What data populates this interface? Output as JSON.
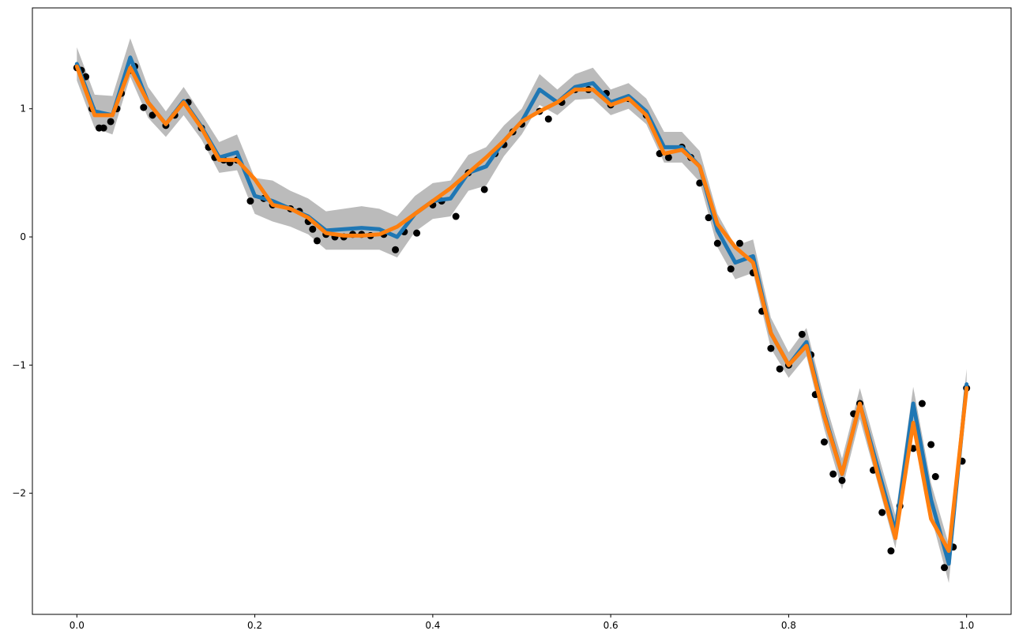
{
  "chart_data": {
    "type": "line",
    "x": [
      0.0,
      0.02,
      0.04,
      0.06,
      0.08,
      0.1,
      0.12,
      0.14,
      0.16,
      0.18,
      0.2,
      0.22,
      0.24,
      0.26,
      0.28,
      0.3,
      0.32,
      0.34,
      0.36,
      0.38,
      0.4,
      0.42,
      0.44,
      0.46,
      0.48,
      0.5,
      0.52,
      0.54,
      0.56,
      0.58,
      0.6,
      0.62,
      0.64,
      0.66,
      0.68,
      0.7,
      0.72,
      0.74,
      0.76,
      0.78,
      0.8,
      0.82,
      0.84,
      0.86,
      0.88,
      0.9,
      0.92,
      0.94,
      0.96,
      0.98,
      1.0
    ],
    "series": [
      {
        "color": "#1f77b4",
        "values": [
          1.35,
          0.98,
          0.95,
          1.4,
          1.05,
          0.88,
          1.06,
          0.86,
          0.62,
          0.66,
          0.32,
          0.28,
          0.22,
          0.16,
          0.05,
          0.06,
          0.07,
          0.06,
          0.0,
          0.18,
          0.28,
          0.3,
          0.5,
          0.55,
          0.75,
          0.9,
          1.15,
          1.05,
          1.17,
          1.2,
          1.05,
          1.1,
          0.98,
          0.7,
          0.7,
          0.55,
          0.05,
          -0.2,
          -0.15,
          -0.75,
          -1.0,
          -0.82,
          -1.38,
          -1.85,
          -1.3,
          -1.8,
          -2.3,
          -1.3,
          -2.05,
          -2.55,
          -1.15
        ]
      },
      {
        "color": "#ff7f0e",
        "values": [
          1.33,
          0.95,
          0.95,
          1.32,
          1.05,
          0.88,
          1.05,
          0.85,
          0.6,
          0.6,
          0.45,
          0.25,
          0.22,
          0.15,
          0.03,
          0.01,
          0.01,
          0.02,
          0.08,
          0.18,
          0.28,
          0.38,
          0.5,
          0.62,
          0.75,
          0.9,
          0.98,
          1.05,
          1.15,
          1.15,
          1.03,
          1.08,
          0.95,
          0.65,
          0.68,
          0.55,
          0.1,
          -0.08,
          -0.2,
          -0.75,
          -1.0,
          -0.85,
          -1.4,
          -1.85,
          -1.3,
          -1.85,
          -2.35,
          -1.45,
          -2.2,
          -2.45,
          -1.18
        ]
      }
    ],
    "band": {
      "color": "#bbbbbb",
      "lower": [
        1.22,
        0.85,
        0.8,
        1.25,
        0.93,
        0.78,
        0.95,
        0.76,
        0.5,
        0.52,
        0.18,
        0.12,
        0.08,
        0.02,
        -0.1,
        -0.1,
        -0.1,
        -0.1,
        -0.16,
        0.04,
        0.14,
        0.16,
        0.36,
        0.4,
        0.63,
        0.8,
        1.03,
        0.95,
        1.07,
        1.08,
        0.95,
        1.0,
        0.88,
        0.58,
        0.58,
        0.43,
        -0.08,
        -0.33,
        -0.28,
        -0.87,
        -1.1,
        -0.93,
        -1.5,
        -1.97,
        -1.42,
        -1.92,
        -2.43,
        -1.43,
        -2.18,
        -2.7,
        -1.27
      ],
      "upper": [
        1.48,
        1.11,
        1.1,
        1.55,
        1.17,
        0.98,
        1.17,
        0.96,
        0.74,
        0.8,
        0.46,
        0.44,
        0.36,
        0.3,
        0.2,
        0.22,
        0.24,
        0.22,
        0.16,
        0.32,
        0.42,
        0.44,
        0.64,
        0.7,
        0.87,
        1.0,
        1.27,
        1.15,
        1.27,
        1.32,
        1.15,
        1.2,
        1.08,
        0.82,
        0.82,
        0.67,
        0.18,
        -0.07,
        -0.02,
        -0.63,
        -0.9,
        -0.71,
        -1.26,
        -1.73,
        -1.18,
        -1.68,
        -2.17,
        -1.17,
        -1.92,
        -2.4,
        -1.03
      ]
    },
    "points": {
      "color": "#000000",
      "x": [
        0.0,
        0.005,
        0.01,
        0.017,
        0.025,
        0.03,
        0.038,
        0.045,
        0.05,
        0.06,
        0.065,
        0.075,
        0.085,
        0.1,
        0.11,
        0.125,
        0.14,
        0.148,
        0.155,
        0.165,
        0.172,
        0.18,
        0.195,
        0.21,
        0.22,
        0.24,
        0.25,
        0.26,
        0.265,
        0.27,
        0.28,
        0.29,
        0.3,
        0.31,
        0.32,
        0.33,
        0.345,
        0.358,
        0.368,
        0.382,
        0.4,
        0.41,
        0.426,
        0.44,
        0.458,
        0.47,
        0.48,
        0.49,
        0.5,
        0.52,
        0.53,
        0.545,
        0.56,
        0.575,
        0.595,
        0.6,
        0.62,
        0.64,
        0.655,
        0.665,
        0.68,
        0.69,
        0.7,
        0.71,
        0.72,
        0.735,
        0.745,
        0.76,
        0.77,
        0.78,
        0.79,
        0.8,
        0.815,
        0.825,
        0.83,
        0.84,
        0.85,
        0.86,
        0.873,
        0.88,
        0.895,
        0.905,
        0.915,
        0.925,
        0.94,
        0.95,
        0.96,
        0.965,
        0.975,
        0.985,
        0.995,
        1.0
      ],
      "y": [
        1.32,
        1.3,
        1.25,
        1.0,
        0.85,
        0.85,
        0.9,
        1.0,
        1.12,
        1.3,
        1.33,
        1.01,
        0.95,
        0.87,
        0.95,
        1.05,
        0.85,
        0.7,
        0.62,
        0.6,
        0.58,
        0.6,
        0.28,
        0.3,
        0.25,
        0.22,
        0.2,
        0.12,
        0.06,
        -0.03,
        0.02,
        0.0,
        0.0,
        0.02,
        0.02,
        0.01,
        0.02,
        -0.1,
        0.04,
        0.03,
        0.25,
        0.28,
        0.16,
        0.5,
        0.37,
        0.65,
        0.72,
        0.82,
        0.88,
        0.98,
        0.92,
        1.05,
        1.15,
        1.15,
        1.12,
        1.03,
        1.08,
        0.95,
        0.65,
        0.62,
        0.7,
        0.62,
        0.42,
        0.15,
        -0.05,
        -0.25,
        -0.05,
        -0.28,
        -0.58,
        -0.87,
        -1.03,
        -1.0,
        -0.76,
        -0.92,
        -1.23,
        -1.6,
        -1.85,
        -1.9,
        -1.38,
        -1.3,
        -1.82,
        -2.15,
        -2.45,
        -2.1,
        -1.65,
        -1.3,
        -1.62,
        -1.87,
        -2.58,
        -2.42,
        -1.75,
        -1.18
      ]
    },
    "xlim": [
      -0.05,
      1.05
    ],
    "ylim": [
      -2.945,
      1.787
    ],
    "xticks": [
      {
        "value": 0,
        "label": "0.0"
      },
      {
        "value": 0.2,
        "label": "0.2"
      },
      {
        "value": 0.4,
        "label": "0.4"
      },
      {
        "value": 0.6,
        "label": "0.6"
      },
      {
        "value": 0.8,
        "label": "0.8"
      },
      {
        "value": 1,
        "label": "1.0"
      }
    ],
    "yticks": [
      {
        "value": -2,
        "label": "−2"
      },
      {
        "value": -1,
        "label": "−1"
      },
      0,
      1
    ]
  }
}
